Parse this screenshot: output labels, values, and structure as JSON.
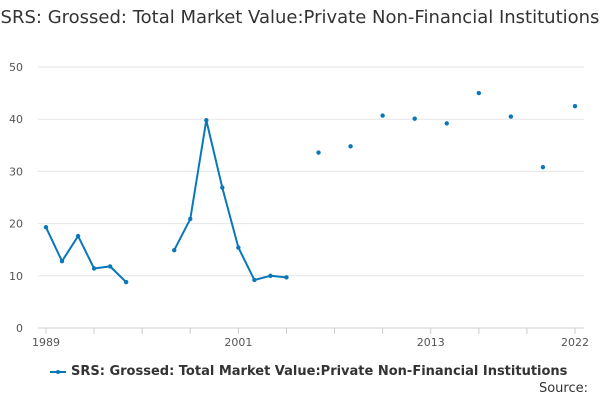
{
  "chart_data": {
    "type": "line",
    "title": "SRS: Grossed: Total Market Value:Private Non-Financial Institutions",
    "xlabel": "",
    "ylabel": "",
    "ylim": [
      0,
      50
    ],
    "yticks": [
      0,
      10,
      20,
      30,
      40,
      50
    ],
    "xlim": [
      1989,
      2022
    ],
    "xtick_labels": [
      "1989",
      "2001",
      "2013",
      "2022"
    ],
    "xtick_values": [
      1989,
      2001,
      2013,
      2022
    ],
    "series": [
      {
        "name": "SRS: Grossed: Total Market Value:Private Non-Financial Institutions",
        "color": "#0a78b8",
        "points": [
          {
            "x": 1989,
            "y": 19.3
          },
          {
            "x": 1990,
            "y": 12.8
          },
          {
            "x": 1991,
            "y": 17.6
          },
          {
            "x": 1992,
            "y": 11.4
          },
          {
            "x": 1993,
            "y": 11.8
          },
          {
            "x": 1994,
            "y": 8.8
          },
          {
            "x": 1995,
            "y": null
          },
          {
            "x": 1996,
            "y": null
          },
          {
            "x": 1997,
            "y": 14.9
          },
          {
            "x": 1998,
            "y": 20.9
          },
          {
            "x": 1999,
            "y": 39.8
          },
          {
            "x": 2000,
            "y": 26.9
          },
          {
            "x": 2001,
            "y": 15.4
          },
          {
            "x": 2002,
            "y": 9.2
          },
          {
            "x": 2003,
            "y": 10.0
          },
          {
            "x": 2004,
            "y": 9.7
          },
          {
            "x": 2005,
            "y": null
          },
          {
            "x": 2006,
            "y": 33.6
          },
          {
            "x": 2007,
            "y": null
          },
          {
            "x": 2008,
            "y": 34.8
          },
          {
            "x": 2009,
            "y": null
          },
          {
            "x": 2010,
            "y": 40.7
          },
          {
            "x": 2011,
            "y": null
          },
          {
            "x": 2012,
            "y": 40.1
          },
          {
            "x": 2013,
            "y": null
          },
          {
            "x": 2014,
            "y": 39.2
          },
          {
            "x": 2015,
            "y": null
          },
          {
            "x": 2016,
            "y": 45.0
          },
          {
            "x": 2017,
            "y": null
          },
          {
            "x": 2018,
            "y": 40.5
          },
          {
            "x": 2019,
            "y": null
          },
          {
            "x": 2020,
            "y": 30.8
          },
          {
            "x": 2021,
            "y": null
          },
          {
            "x": 2022,
            "y": 42.5
          }
        ]
      }
    ]
  },
  "source_label": "Source:"
}
